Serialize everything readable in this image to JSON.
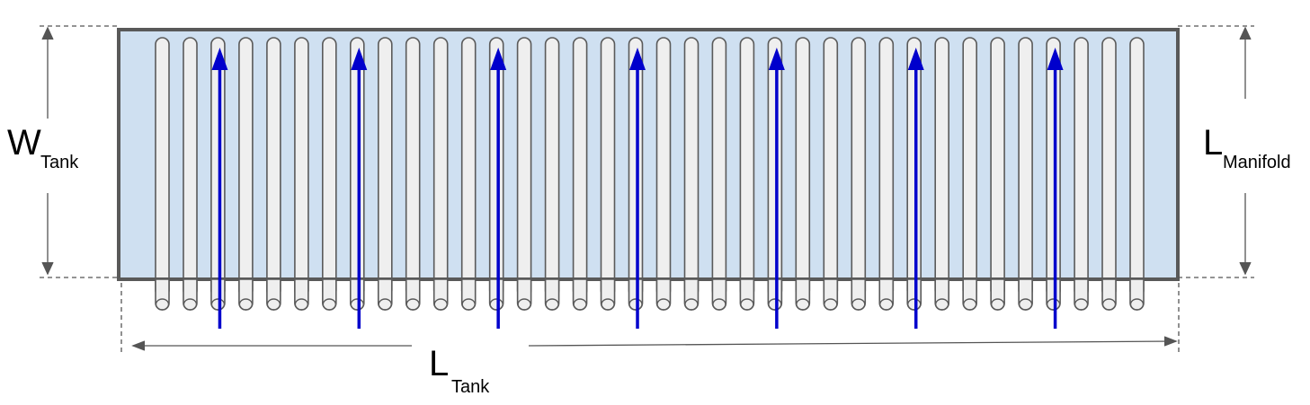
{
  "labels": {
    "w_tank": {
      "main": "W",
      "sub": "Tank"
    },
    "l_manifold": {
      "main": "L",
      "sub": "Manifold"
    },
    "l_tank": {
      "main": "L",
      "sub": "Tank"
    }
  },
  "colors": {
    "tank_fill": "#cfe0f1",
    "tank_border": "#595959",
    "tube_fill": "#efefef",
    "tube_stroke": "#5a5a5a",
    "flow_arrow": "#0000cc",
    "dimension_line": "#555555"
  },
  "diagram": {
    "tube_count": 36,
    "flow_arrow_count": 7,
    "flow_direction": "up"
  }
}
